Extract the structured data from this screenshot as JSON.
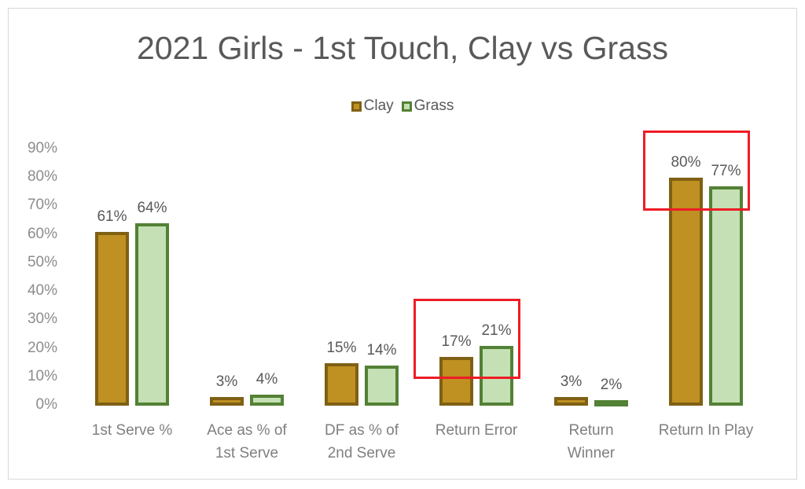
{
  "chart_data": {
    "type": "bar",
    "title": "2021 Girls - 1st Touch, Clay vs Grass",
    "xlabel": "",
    "ylabel": "",
    "ylim": [
      0,
      0.9
    ],
    "grid": false,
    "legend_position": "top",
    "categories": [
      "1st Serve %",
      "Ace as % of 1st Serve",
      "DF as % of 2nd Serve",
      "Return Error",
      "Return Winner",
      "Return In Play"
    ],
    "category_lines": [
      [
        "1st Serve %"
      ],
      [
        "Ace as % of",
        "1st Serve"
      ],
      [
        "DF as % of",
        "2nd Serve"
      ],
      [
        "Return Error"
      ],
      [
        "Return",
        "Winner"
      ],
      [
        "Return In Play"
      ]
    ],
    "series": [
      {
        "name": "Clay",
        "values": [
          0.61,
          0.03,
          0.15,
          0.17,
          0.03,
          0.8
        ],
        "labels": [
          "61%",
          "3%",
          "15%",
          "17%",
          "3%",
          "80%"
        ],
        "fill": "#bf9022",
        "stroke": "#7f6014"
      },
      {
        "name": "Grass",
        "values": [
          0.64,
          0.04,
          0.14,
          0.21,
          0.02,
          0.77
        ],
        "labels": [
          "64%",
          "4%",
          "14%",
          "21%",
          "2%",
          "77%"
        ],
        "fill": "#c5e0b4",
        "stroke": "#538135"
      }
    ],
    "yticks": [
      "0%",
      "10%",
      "20%",
      "30%",
      "40%",
      "50%",
      "60%",
      "70%",
      "80%",
      "90%"
    ],
    "annotations": [
      {
        "type": "highlight-box",
        "category": "Return Error",
        "color": "#ee1c25"
      },
      {
        "type": "highlight-box",
        "category": "Return In Play",
        "color": "#ee1c25"
      }
    ]
  }
}
